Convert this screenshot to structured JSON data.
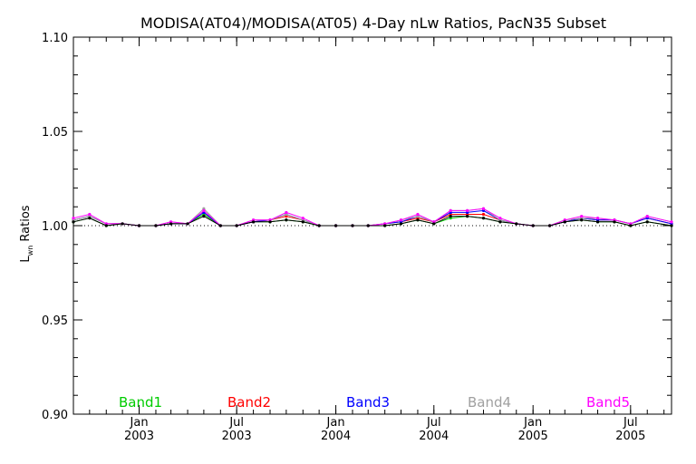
{
  "chart_data": {
    "type": "line",
    "title": "MODISA(AT04)/MODISA(AT05) 4-Day nLw Ratios, PacN35 Subset",
    "ylabel_main": "L",
    "ylabel_sub": "wn",
    "ylabel_rest": " Ratios",
    "xlabel": "",
    "ylim": [
      0.9,
      1.1
    ],
    "xlim": [
      "2002-09-01",
      "2005-09-15"
    ],
    "y_ticks": [
      "0.90",
      "0.95",
      "1.00",
      "1.05",
      "1.10"
    ],
    "y_tick_values": [
      0.9,
      0.95,
      1.0,
      1.05,
      1.1
    ],
    "x_ticks": [
      {
        "date": "2003-01-01",
        "month": "Jan",
        "year": "2003"
      },
      {
        "date": "2003-07-01",
        "month": "Jul",
        "year": "2003"
      },
      {
        "date": "2004-01-01",
        "month": "Jan",
        "year": "2004"
      },
      {
        "date": "2004-07-01",
        "month": "Jul",
        "year": "2004"
      },
      {
        "date": "2005-01-01",
        "month": "Jan",
        "year": "2005"
      },
      {
        "date": "2005-07-01",
        "month": "Jul",
        "year": "2005"
      }
    ],
    "reference_line": 1.0,
    "x": [
      "2002-09-01",
      "2002-10-01",
      "2002-11-01",
      "2002-12-01",
      "2003-01-01",
      "2003-02-01",
      "2003-03-01",
      "2003-04-01",
      "2003-05-01",
      "2003-06-01",
      "2003-07-01",
      "2003-08-01",
      "2003-09-01",
      "2003-10-01",
      "2003-11-01",
      "2003-12-01",
      "2004-01-01",
      "2004-02-01",
      "2004-03-01",
      "2004-04-01",
      "2004-05-01",
      "2004-06-01",
      "2004-07-01",
      "2004-08-01",
      "2004-09-01",
      "2004-10-01",
      "2004-11-01",
      "2004-12-01",
      "2005-01-01",
      "2005-02-01",
      "2005-03-01",
      "2005-04-01",
      "2005-05-01",
      "2005-06-01",
      "2005-07-01",
      "2005-08-01",
      "2005-09-15"
    ],
    "series": [
      {
        "name": "Band1",
        "color": "#00cc00",
        "values": [
          1.002,
          1.004,
          1.0,
          1.001,
          1.0,
          1.0,
          1.001,
          1.001,
          1.006,
          1.0,
          1.0,
          1.002,
          1.002,
          1.003,
          1.002,
          1.0,
          1.0,
          1.0,
          1.0,
          1.0,
          1.001,
          1.003,
          1.001,
          1.004,
          1.005,
          1.004,
          1.002,
          1.001,
          1.0,
          1.0,
          1.002,
          1.003,
          1.002,
          1.002,
          1.0,
          1.002,
          1.0
        ]
      },
      {
        "name": "Band2",
        "color": "#ff0000",
        "values": [
          1.003,
          1.005,
          1.001,
          1.001,
          1.0,
          1.0,
          1.001,
          1.001,
          1.007,
          1.0,
          1.0,
          1.002,
          1.003,
          1.005,
          1.003,
          1.0,
          1.0,
          1.0,
          1.0,
          1.001,
          1.002,
          1.004,
          1.002,
          1.006,
          1.006,
          1.006,
          1.003,
          1.001,
          1.0,
          1.0,
          1.002,
          1.004,
          1.003,
          1.003,
          1.001,
          1.004,
          1.001
        ]
      },
      {
        "name": "Band3",
        "color": "#0000ff",
        "values": [
          1.003,
          1.005,
          1.001,
          1.001,
          1.0,
          1.0,
          1.001,
          1.001,
          1.007,
          1.0,
          1.0,
          1.002,
          1.003,
          1.006,
          1.003,
          1.0,
          1.0,
          1.0,
          1.0,
          1.001,
          1.002,
          1.005,
          1.002,
          1.007,
          1.007,
          1.008,
          1.003,
          1.001,
          1.0,
          1.0,
          1.002,
          1.004,
          1.003,
          1.003,
          1.001,
          1.004,
          1.001
        ]
      },
      {
        "name": "Band4",
        "color": "#a0a0a0",
        "values": [
          1.003,
          1.005,
          1.001,
          1.001,
          1.0,
          1.0,
          1.002,
          1.001,
          1.009,
          1.0,
          1.0,
          1.003,
          1.003,
          1.006,
          1.003,
          1.0,
          1.0,
          1.0,
          1.0,
          1.001,
          1.003,
          1.005,
          1.002,
          1.008,
          1.008,
          1.009,
          1.003,
          1.001,
          1.0,
          1.0,
          1.003,
          1.004,
          1.004,
          1.003,
          1.001,
          1.005,
          1.002
        ]
      },
      {
        "name": "Band5",
        "color": "#ff00ff",
        "values": [
          1.004,
          1.006,
          1.001,
          1.001,
          1.0,
          1.0,
          1.002,
          1.001,
          1.008,
          1.0,
          1.0,
          1.003,
          1.003,
          1.007,
          1.004,
          1.0,
          1.0,
          1.0,
          1.0,
          1.001,
          1.003,
          1.006,
          1.002,
          1.008,
          1.008,
          1.009,
          1.004,
          1.001,
          1.0,
          1.0,
          1.003,
          1.005,
          1.004,
          1.003,
          1.001,
          1.005,
          1.002
        ]
      },
      {
        "name": "",
        "color": "#000000",
        "values": [
          1.002,
          1.004,
          1.0,
          1.001,
          1.0,
          1.0,
          1.001,
          1.001,
          1.005,
          1.0,
          1.0,
          1.002,
          1.002,
          1.003,
          1.002,
          1.0,
          1.0,
          1.0,
          1.0,
          1.0,
          1.001,
          1.003,
          1.001,
          1.005,
          1.005,
          1.004,
          1.002,
          1.001,
          1.0,
          1.0,
          1.002,
          1.003,
          1.002,
          1.002,
          1.0,
          1.002,
          1.0
        ]
      }
    ],
    "legend_position": "bottom-inside",
    "grid": false
  }
}
